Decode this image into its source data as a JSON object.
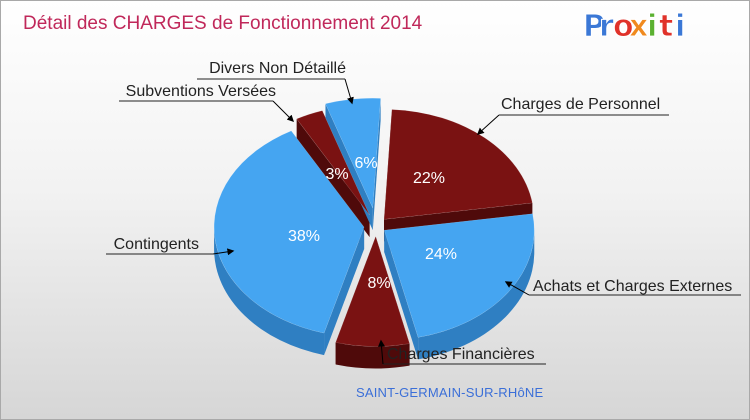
{
  "title": "Détail des CHARGES de Fonctionnement 2014",
  "brand": {
    "letters": [
      "P",
      "r",
      "o",
      "x",
      "i",
      "t",
      "i"
    ],
    "colors": [
      "#3b78d6",
      "#3b78d6",
      "#e0322a",
      "#f08a1e",
      "#5bb131",
      "#e0322a",
      "#3b78d6"
    ]
  },
  "city": "SAINT-GERMAIN-SUR-RHôNE",
  "colors": {
    "blue": "#45a5f1",
    "red": "#7a1212"
  },
  "chart_data": {
    "type": "pie",
    "title": "Détail des CHARGES de Fonctionnement 2014",
    "slices": [
      {
        "label": "Charges de Personnel",
        "value": 22,
        "pct_label": "22%",
        "color": "red"
      },
      {
        "label": "Achats et Charges Externes",
        "value": 24,
        "pct_label": "24%",
        "color": "blue"
      },
      {
        "label": "Charges Financières",
        "value": 8,
        "pct_label": "8%",
        "color": "red"
      },
      {
        "label": "Contingents",
        "value": 38,
        "pct_label": "38%",
        "color": "blue"
      },
      {
        "label": "Subventions Versées",
        "value": 3,
        "pct_label": "3%",
        "color": "red"
      },
      {
        "label": "Divers Non Détaillé",
        "value": 6,
        "pct_label": "6%",
        "color": "blue"
      }
    ]
  }
}
